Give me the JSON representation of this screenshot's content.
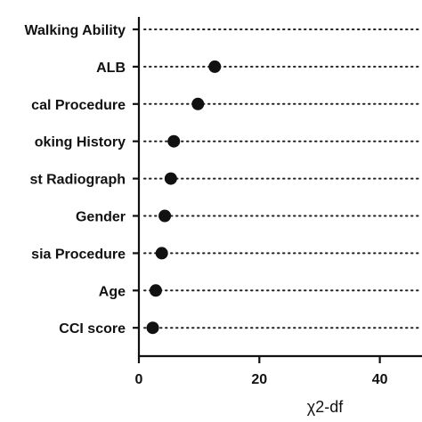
{
  "chart_data": {
    "type": "scatter",
    "orientation": "horizontal-dot-plot",
    "categories": [
      "Walking Ability",
      "ALB",
      "cal Procedure",
      "oking History",
      "st Radiograph",
      "Gender",
      "sia Procedure",
      "Age",
      "CCI score"
    ],
    "values": [
      null,
      12.6,
      9.8,
      5.8,
      5.3,
      4.3,
      3.8,
      2.8,
      2.3
    ],
    "x_ticks": [
      "0",
      "20",
      "40"
    ],
    "x_tick_values": [
      0,
      20,
      40
    ],
    "xlabel": "χ2-df",
    "ylabel": "",
    "title": "",
    "xlim": [
      0,
      47
    ],
    "grid": false,
    "marker": "filled-circle",
    "color": "#111111"
  }
}
